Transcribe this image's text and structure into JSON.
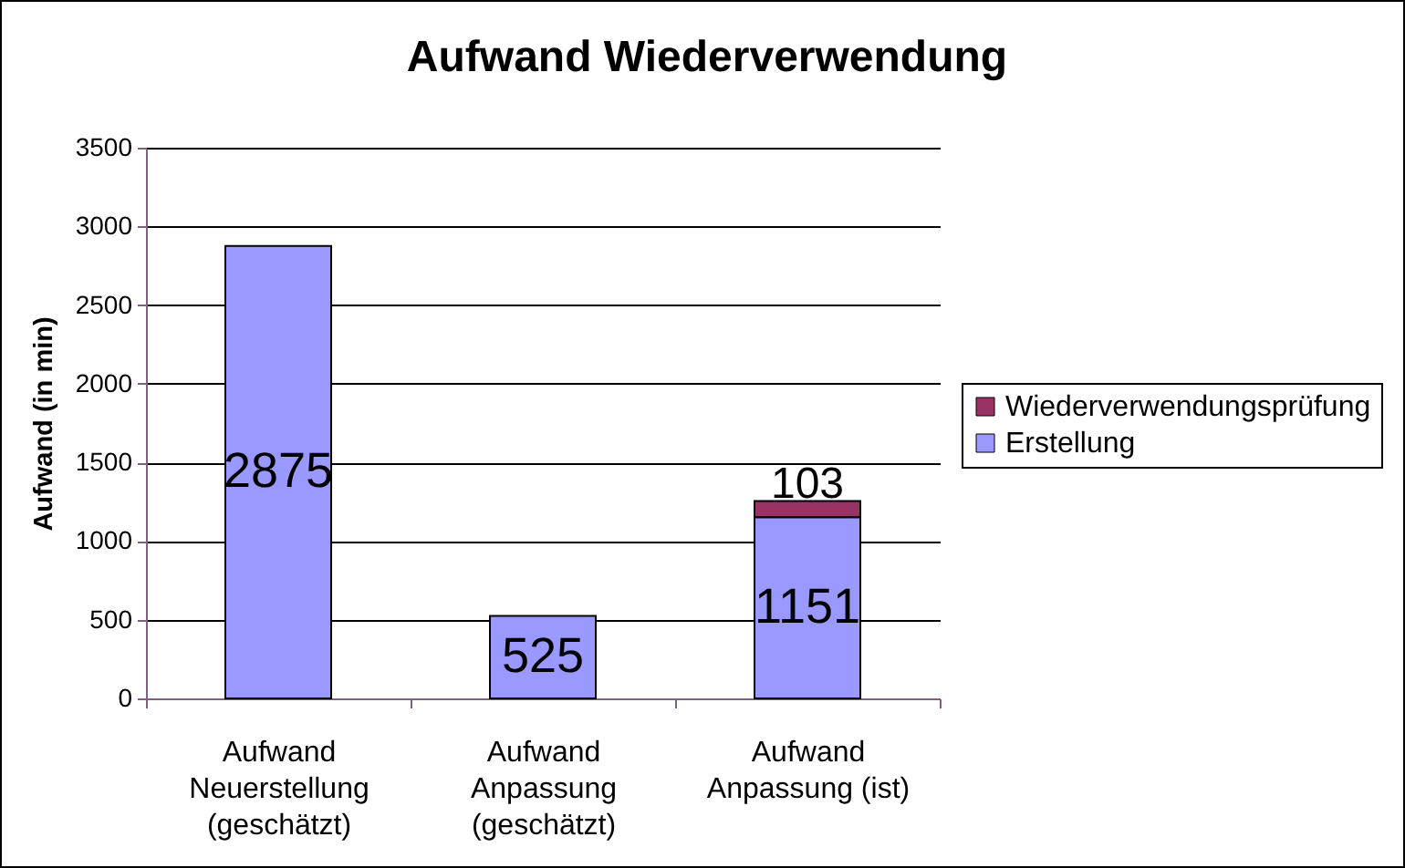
{
  "chart_data": {
    "type": "bar",
    "title": "Aufwand Wiederverwendung",
    "ylabel": "Aufwand (in min)",
    "categories": [
      "Aufwand Neuerstellung (geschätzt)",
      "Aufwand Anpassung (geschätzt)",
      "Aufwand Anpassung (ist)"
    ],
    "series": [
      {
        "name": "Erstellung",
        "color": "#9999ff",
        "values": [
          2875,
          525,
          1151
        ]
      },
      {
        "name": "Wiederverwendungsprüfung",
        "color": "#993366",
        "values": [
          null,
          null,
          103
        ]
      }
    ],
    "stacked": true,
    "ylim": [
      0,
      3500
    ],
    "yticks": [
      0,
      500,
      1000,
      1500,
      2000,
      2500,
      3000,
      3500
    ],
    "grid": "y",
    "legend": "right",
    "data_labels": true
  }
}
